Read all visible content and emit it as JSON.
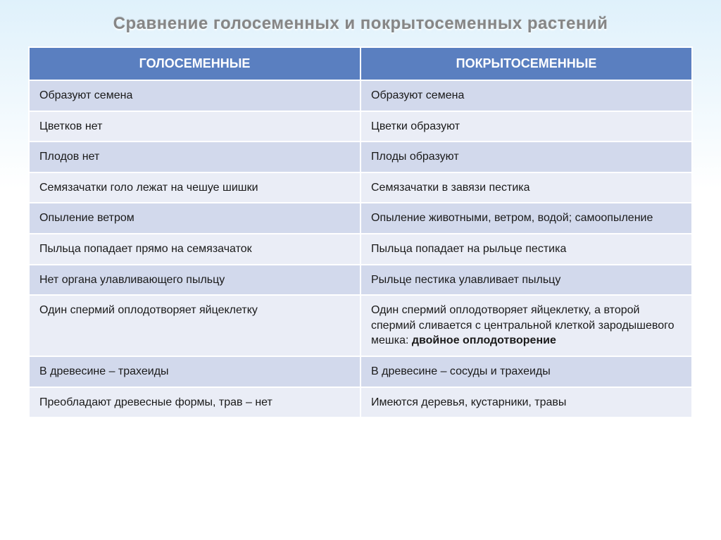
{
  "title": "Сравнение голосеменных и покрытосеменных растений",
  "headers": {
    "col1": "ГОЛОСЕМЕННЫЕ",
    "col2": "ПОКРЫТОСЕМЕННЫЕ"
  },
  "rows": [
    {
      "c1": "Образуют семена",
      "c2": "Образуют семена"
    },
    {
      "c1": "Цветков нет",
      "c2": "Цветки образуют"
    },
    {
      "c1": "Плодов нет",
      "c2": "Плоды образуют"
    },
    {
      "c1": "Семязачатки голо лежат на чешуе шишки",
      "c2": "Семязачатки в завязи пестика"
    },
    {
      "c1": "Опыление ветром",
      "c2": "Опыление животными, ветром, водой; самоопыление"
    },
    {
      "c1": "Пыльца попадает прямо на семязачаток",
      "c2": "Пыльца попадает на рыльце пестика"
    },
    {
      "c1": "Нет органа улавливающего пыльцу",
      "c2": "Рыльце пестика улавливает пыльцу"
    },
    {
      "c1": "Один спермий оплодотворяет яйцеклетку",
      "c2_pre": "Один спермий оплодотворяет яйцеклетку, а второй спермий сливается с центральной клеткой зародышевого мешка: ",
      "c2_bold": "двойное оплодотворение"
    },
    {
      "c1": "В древесине – трахеиды",
      "c2": "В древесине – сосуды и трахеиды"
    },
    {
      "c1": "Преобладают древесные формы, трав – нет",
      "c2": "Имеются деревья, кустарники, травы"
    }
  ],
  "style": {
    "header_bg": "#5a7fc0",
    "row_odd_bg": "#d2d9ec",
    "row_even_bg": "#eaedf6",
    "title_color": "#868686",
    "title_fontsize": 24,
    "header_fontsize": 18,
    "cell_fontsize": 16
  }
}
